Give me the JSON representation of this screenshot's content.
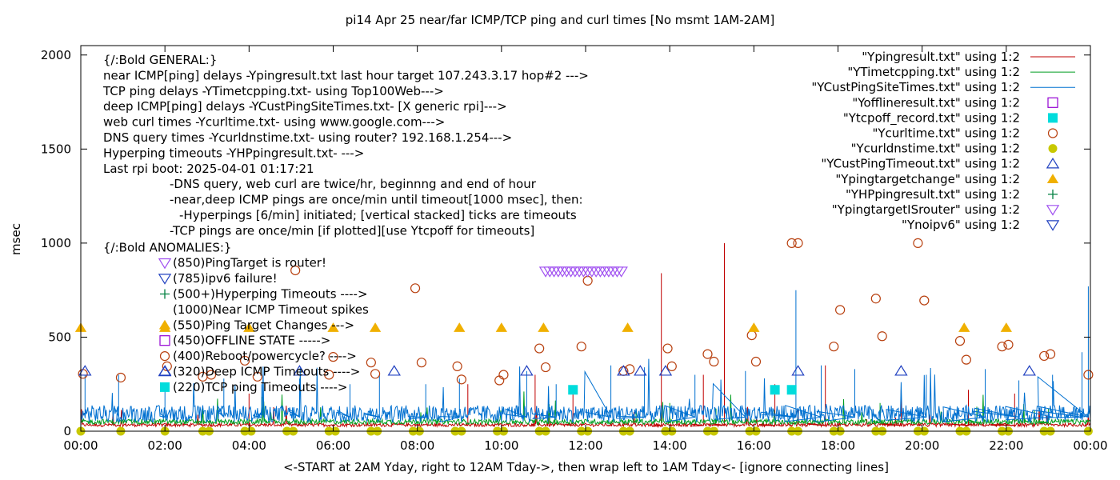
{
  "chart_data": {
    "type": "scatter",
    "title": "pi14 Apr 25  near/far ICMP/TCP ping and curl times [No msmt 1AM-2AM]",
    "xlabel": "<-START at 2AM Yday, right to 12AM Tday->, then wrap left to 1AM Tday<- [ignore connecting lines]",
    "ylabel": "msec",
    "xlim": [
      0,
      24
    ],
    "ylim": [
      0,
      2050
    ],
    "x_tick_labels": [
      "00:00",
      "02:00",
      "04:00",
      "06:00",
      "08:00",
      "10:00",
      "12:00",
      "14:00",
      "16:00",
      "18:00",
      "20:00",
      "22:00",
      "00:00"
    ],
    "y_ticks": [
      0,
      500,
      1000,
      1500,
      2000
    ],
    "grid": false,
    "legend_position": "top-right",
    "annotations": [
      "{/:Bold GENERAL:}",
      "near ICMP[ping] delays -Ypingresult.txt last hour target 107.243.3.17 hop#2 --->",
      "TCP ping delays -YTimetcpping.txt- using Top100Web--->",
      "deep ICMP[ping] delays -YCustPingSiteTimes.txt- [X generic rpi]--->",
      "web curl times -Ycurltime.txt- using www.google.com--->",
      "DNS query times -Ycurldnstime.txt- using router? 192.168.1.254--->",
      "Hyperping timeouts -YHPpingresult.txt- --->",
      "Last rpi boot: 2025-04-01 01:17:21",
      "-DNS query, web curl are twice/hr, beginnng and end of hour",
      "-near,deep ICMP pings are once/min until timeout[1000 msec], then:",
      "-Hyperpings [6/min] initiated; [vertical stacked] ticks are timeouts",
      "-TCP pings are once/min [if plotted][use Ytcpoff for timeouts]",
      "{/:Bold ANOMALIES:}",
      "(850)PingTarget is router!",
      "(785)ipv6 failure!",
      "(500+)Hyperping Timeouts ---->",
      "(1000)Near ICMP Timeout spikes",
      "(550)Ping Target Changes --->",
      "(450)OFFLINE STATE ----->",
      "(400)Reboot/powercycle? ---->",
      "(320)Deep ICMP Timeouts ---->",
      "(220)TCP ping Timeouts ---->"
    ],
    "series": [
      {
        "name": "\"Ypingresult.txt\" using 1:2",
        "style": "line",
        "color": "#c00000",
        "baseline": 30,
        "spikes": [
          [
            4.0,
            200
          ],
          [
            9.2,
            250
          ],
          [
            10.8,
            300
          ],
          [
            11.7,
            200
          ],
          [
            13.8,
            840
          ],
          [
            14.8,
            300
          ],
          [
            15.3,
            1000
          ],
          [
            16.5,
            250
          ],
          [
            17.7,
            350
          ],
          [
            19.5,
            220
          ],
          [
            21.1,
            220
          ],
          [
            22.2,
            200
          ]
        ]
      },
      {
        "name": "\"YTimetcpping.txt\" using 1:2",
        "style": "line",
        "color": "#009e20",
        "baseline": 45,
        "spikes": [
          [
            13.2,
            120
          ],
          [
            14.0,
            150
          ],
          [
            15.1,
            120
          ],
          [
            19.0,
            150
          ],
          [
            21.3,
            130
          ],
          [
            23.0,
            120
          ]
        ]
      },
      {
        "name": "\"YCustPingSiteTimes.txt\" using 1:2",
        "style": "line",
        "color": "#0070d0",
        "baseline": 75,
        "spikes": [
          [
            0.1,
            300
          ],
          [
            0.9,
            300
          ],
          [
            2.0,
            250
          ],
          [
            3.4,
            280
          ],
          [
            4.3,
            250
          ],
          [
            5.2,
            280
          ],
          [
            6.4,
            250
          ],
          [
            7.1,
            300
          ],
          [
            8.2,
            250
          ],
          [
            9.0,
            280
          ],
          [
            10.6,
            320
          ],
          [
            11.3,
            250
          ],
          [
            12.6,
            350
          ],
          [
            13.4,
            340
          ],
          [
            14.6,
            300
          ],
          [
            15.8,
            320
          ],
          [
            17.0,
            750
          ],
          [
            17.6,
            350
          ],
          [
            18.4,
            330
          ],
          [
            20.1,
            300
          ],
          [
            21.5,
            330
          ],
          [
            22.3,
            270
          ],
          [
            23.1,
            300
          ],
          [
            23.8,
            420
          ],
          [
            23.95,
            770
          ]
        ]
      },
      {
        "name": "\"Yofflineresult.txt\" using 1:2",
        "style": "points",
        "marker": "open-square",
        "color": "#9400d3",
        "points": []
      },
      {
        "name": "\"Ytcpoff_record.txt\" using 1:2",
        "style": "points",
        "marker": "filled-square",
        "color": "#00dcdc",
        "points": [
          [
            11.7,
            220
          ],
          [
            16.5,
            220
          ],
          [
            16.9,
            220
          ]
        ]
      },
      {
        "name": "\"Ycurltime.txt\" using 1:2",
        "style": "points",
        "marker": "open-circle",
        "color": "#b8400f",
        "points": [
          [
            0.05,
            305
          ],
          [
            0.95,
            285
          ],
          [
            2.05,
            345
          ],
          [
            2.9,
            290
          ],
          [
            3.1,
            300
          ],
          [
            3.9,
            375
          ],
          [
            4.2,
            290
          ],
          [
            5.1,
            855
          ],
          [
            5.9,
            300
          ],
          [
            6.0,
            395
          ],
          [
            6.9,
            365
          ],
          [
            7.0,
            305
          ],
          [
            7.95,
            760
          ],
          [
            8.1,
            365
          ],
          [
            8.95,
            345
          ],
          [
            9.05,
            275
          ],
          [
            9.95,
            270
          ],
          [
            10.05,
            300
          ],
          [
            10.9,
            440
          ],
          [
            11.05,
            340
          ],
          [
            11.9,
            450
          ],
          [
            12.05,
            800
          ],
          [
            12.9,
            320
          ],
          [
            13.05,
            330
          ],
          [
            13.95,
            440
          ],
          [
            14.05,
            345
          ],
          [
            14.9,
            410
          ],
          [
            15.05,
            370
          ],
          [
            15.95,
            510
          ],
          [
            16.05,
            370
          ],
          [
            16.9,
            1000
          ],
          [
            17.05,
            1000
          ],
          [
            17.9,
            450
          ],
          [
            18.05,
            645
          ],
          [
            18.9,
            705
          ],
          [
            19.05,
            505
          ],
          [
            19.9,
            1000
          ],
          [
            20.05,
            695
          ],
          [
            20.9,
            480
          ],
          [
            21.05,
            380
          ],
          [
            21.9,
            450
          ],
          [
            22.05,
            460
          ],
          [
            22.9,
            400
          ],
          [
            23.05,
            410
          ],
          [
            23.95,
            300
          ]
        ]
      },
      {
        "name": "\"Ycurldnstime.txt\" using 1:2",
        "style": "points",
        "marker": "filled-circle",
        "color": "#c8c800",
        "points": [
          [
            0.0,
            0
          ],
          [
            0.95,
            0
          ],
          [
            2.0,
            0
          ],
          [
            2.9,
            0
          ],
          [
            3.05,
            0
          ],
          [
            3.9,
            0
          ],
          [
            4.05,
            0
          ],
          [
            4.9,
            0
          ],
          [
            5.05,
            0
          ],
          [
            5.9,
            0
          ],
          [
            6.05,
            0
          ],
          [
            6.9,
            0
          ],
          [
            7.05,
            0
          ],
          [
            7.9,
            0
          ],
          [
            8.05,
            0
          ],
          [
            8.9,
            0
          ],
          [
            9.05,
            0
          ],
          [
            9.9,
            0
          ],
          [
            10.05,
            0
          ],
          [
            10.9,
            0
          ],
          [
            11.05,
            0
          ],
          [
            11.9,
            0
          ],
          [
            12.05,
            0
          ],
          [
            12.9,
            0
          ],
          [
            13.05,
            0
          ],
          [
            13.9,
            0
          ],
          [
            14.05,
            0
          ],
          [
            14.9,
            0
          ],
          [
            15.05,
            0
          ],
          [
            15.9,
            0
          ],
          [
            16.05,
            0
          ],
          [
            16.9,
            0
          ],
          [
            17.05,
            0
          ],
          [
            17.9,
            0
          ],
          [
            18.05,
            0
          ],
          [
            18.9,
            0
          ],
          [
            19.05,
            0
          ],
          [
            19.9,
            0
          ],
          [
            20.05,
            0
          ],
          [
            20.9,
            0
          ],
          [
            21.05,
            0
          ],
          [
            21.9,
            0
          ],
          [
            22.05,
            0
          ],
          [
            22.9,
            0
          ],
          [
            23.05,
            0
          ],
          [
            23.95,
            0
          ]
        ]
      },
      {
        "name": "\"YCustPingTimeout.txt\" using 1:2",
        "style": "points",
        "marker": "open-triangle-up",
        "color": "#2040c0",
        "points": [
          [
            0.1,
            320
          ],
          [
            2.0,
            320
          ],
          [
            5.2,
            320
          ],
          [
            7.45,
            320
          ],
          [
            10.6,
            320
          ],
          [
            12.9,
            320
          ],
          [
            13.3,
            320
          ],
          [
            13.9,
            320
          ],
          [
            17.05,
            320
          ],
          [
            19.5,
            320
          ],
          [
            22.55,
            320
          ]
        ]
      },
      {
        "name": "\"Ypingtargetchange\" using 1:2",
        "style": "points",
        "marker": "filled-triangle-up",
        "color": "#f0b000",
        "points": [
          [
            0.0,
            550
          ],
          [
            2.0,
            550
          ],
          [
            4.0,
            550
          ],
          [
            6.0,
            550
          ],
          [
            7.0,
            550
          ],
          [
            9.0,
            550
          ],
          [
            10.0,
            550
          ],
          [
            11.0,
            550
          ],
          [
            13.0,
            550
          ],
          [
            16.0,
            550
          ],
          [
            21.0,
            550
          ],
          [
            22.0,
            550
          ]
        ]
      },
      {
        "name": "\"YHPpingresult.txt\" using 1:2",
        "style": "points",
        "marker": "plus",
        "color": "#008040",
        "points": []
      },
      {
        "name": "\"YpingtargetISrouter\" using 1:2",
        "style": "points",
        "marker": "open-triangle-down",
        "color": "#a050f0",
        "points": [
          [
            11.05,
            850
          ],
          [
            11.15,
            850
          ],
          [
            11.25,
            850
          ],
          [
            11.35,
            850
          ],
          [
            11.45,
            850
          ],
          [
            11.55,
            850
          ],
          [
            11.65,
            850
          ],
          [
            11.75,
            850
          ],
          [
            11.85,
            850
          ],
          [
            11.95,
            850
          ],
          [
            12.05,
            850
          ],
          [
            12.15,
            850
          ],
          [
            12.25,
            850
          ],
          [
            12.35,
            850
          ],
          [
            12.45,
            850
          ],
          [
            12.55,
            850
          ],
          [
            12.65,
            850
          ],
          [
            12.75,
            850
          ],
          [
            12.85,
            850
          ]
        ]
      },
      {
        "name": "\"Ynoipv6\" using 1:2",
        "style": "points",
        "marker": "open-triangle-down",
        "color": "#2040c0",
        "points": []
      }
    ]
  }
}
